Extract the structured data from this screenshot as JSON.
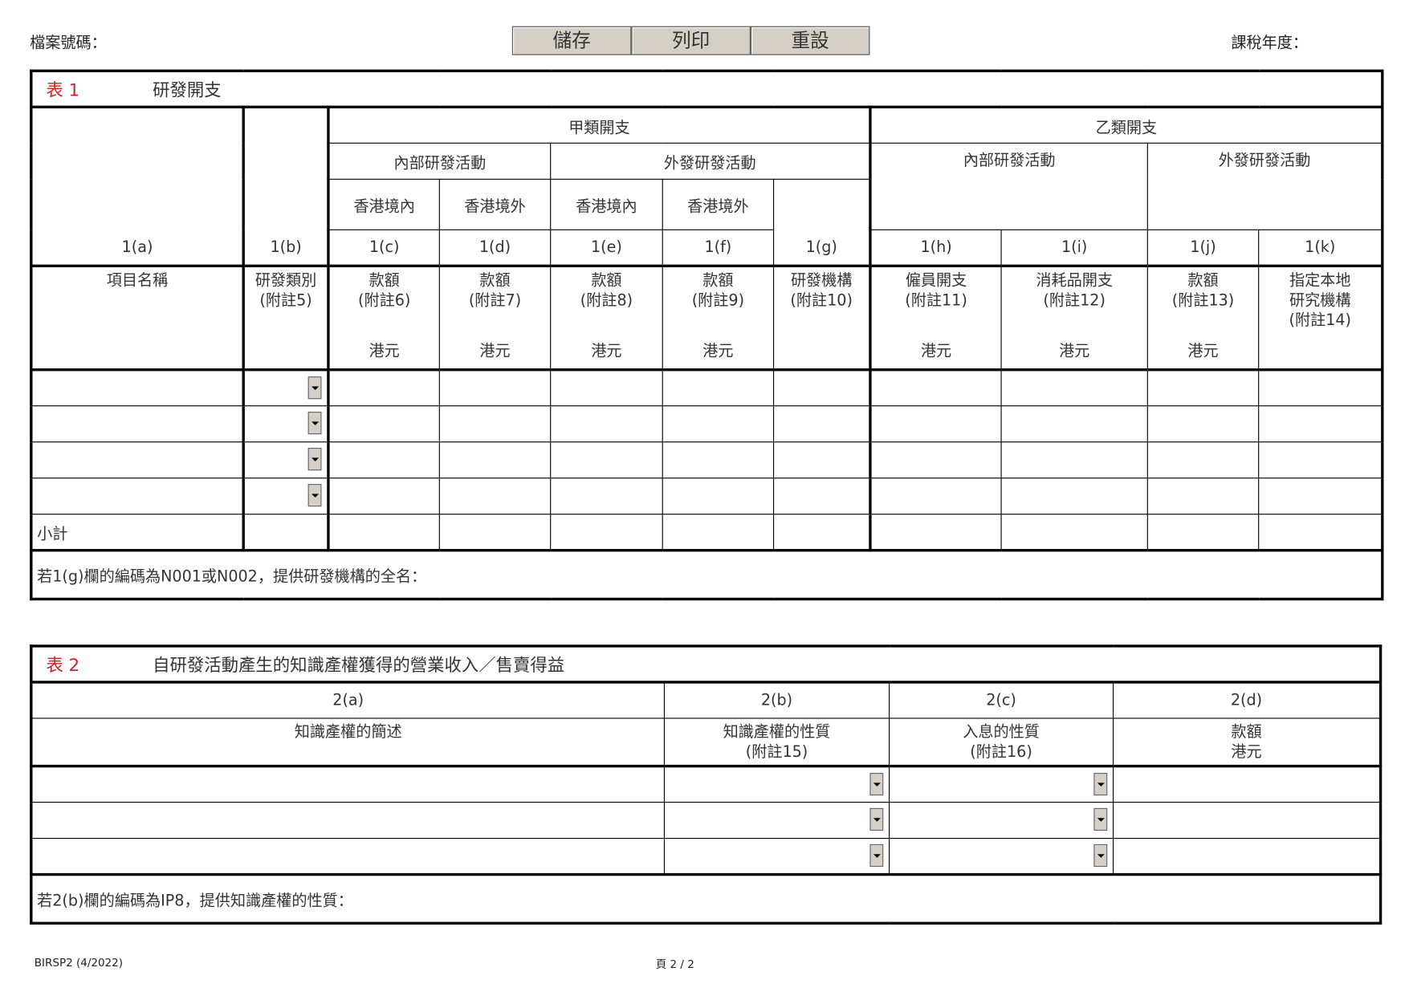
{
  "header": {
    "file_no_label": "檔案號碼：",
    "tax_year_label": "課稅年度：",
    "buttons": [
      "儲存",
      "列印",
      "重設"
    ]
  },
  "table1": {
    "number": "表 1",
    "title": "研發開支",
    "group_a": "甲類開支",
    "group_b": "乙類開支",
    "internal": "內部研發活動",
    "external": "外發研發活動",
    "hk_in": "香港境內",
    "hk_out": "香港境外",
    "codes": [
      "1(a)",
      "1(b)",
      "1(c)",
      "1(d)",
      "1(e)",
      "1(f)",
      "1(g)",
      "1(h)",
      "1(i)",
      "1(j)",
      "1(k)"
    ],
    "labels": [
      {
        "l1": "項目名稱",
        "l2": "",
        "unit": ""
      },
      {
        "l1": "研發類別",
        "l2": "(附註5)",
        "unit": ""
      },
      {
        "l1": "款額",
        "l2": "(附註6)",
        "unit": "港元"
      },
      {
        "l1": "款額",
        "l2": "(附註7)",
        "unit": "港元"
      },
      {
        "l1": "款額",
        "l2": "(附註8)",
        "unit": "港元"
      },
      {
        "l1": "款額",
        "l2": "(附註9)",
        "unit": "港元"
      },
      {
        "l1": "研發機構",
        "l2": "(附註10)",
        "unit": ""
      },
      {
        "l1": "僱員開支",
        "l2": "(附註11)",
        "unit": "港元"
      },
      {
        "l1": "消耗品開支",
        "l2": "(附註12)",
        "unit": "港元"
      },
      {
        "l1": "款額",
        "l2": "(附註13)",
        "unit": "港元"
      },
      {
        "l1": "指定本地",
        "l2": "研究機構",
        "l3": "(附註14)",
        "unit": ""
      }
    ],
    "subtotal": "小計",
    "note": "若1(g)欄的編碼為N001或N002，提供研發機構的全名："
  },
  "table2": {
    "number": "表 2",
    "title": "自研發活動產生的知識產權獲得的營業收入／售賣得益",
    "codes": [
      "2(a)",
      "2(b)",
      "2(c)",
      "2(d)"
    ],
    "labels": [
      {
        "l1": "知識產權的簡述",
        "l2": ""
      },
      {
        "l1": "知識產權的性質",
        "l2": "(附註15)"
      },
      {
        "l1": "入息的性質",
        "l2": "(附註16)"
      },
      {
        "l1": "款額",
        "l2": "港元"
      }
    ],
    "note": "若2(b)欄的編碼為IP8，提供知識產權的性質："
  },
  "footer": {
    "form_code": "BIRSP2 (4/2022)",
    "page": "頁 2 / 2"
  },
  "colors": {
    "table_number": "#d02020",
    "button_bg": "#d4d0c8"
  }
}
